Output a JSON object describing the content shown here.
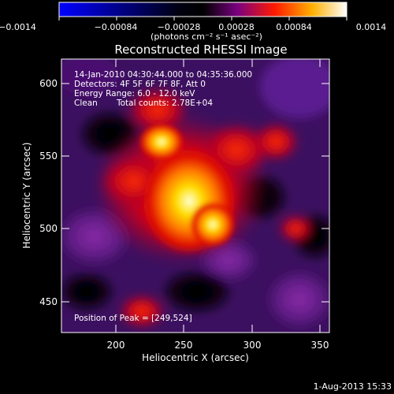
{
  "colorbar": {
    "ticks": [
      "−0.0014",
      "−0.00084",
      "−0.00028",
      "0.00028",
      "0.00084",
      "0.0014"
    ],
    "unit_label": "(photons cm⁻² s⁻¹ asec⁻²)",
    "colormap": [
      "#0000ff",
      "#000000",
      "#800080",
      "#ff0000",
      "#ffff00",
      "#ffffff"
    ]
  },
  "plot": {
    "title": "Reconstructed RHESSI Image",
    "xlabel": "Heliocentric X (arcsec)",
    "ylabel": "Heliocentric Y (arcsec)",
    "xticks": [
      "200",
      "250",
      "300",
      "350"
    ],
    "yticks": [
      "450",
      "500",
      "550",
      "600"
    ],
    "xlim": [
      165,
      355
    ],
    "ylim": [
      430,
      620
    ]
  },
  "info": {
    "line1": "14-Jan-2010 04:30:44.000 to 04:35:36.000",
    "line2": "Detectors: 4F 5F 6F 7F 8F, Att 0",
    "line3": "Energy Range: 6.0 - 12.0 keV",
    "line4_a": "Clean",
    "line4_b": "Total counts: 2.78E+04",
    "peak": "Position of Peak = [249,524]"
  },
  "footer": {
    "date": "1-Aug-2013 15:33"
  }
}
